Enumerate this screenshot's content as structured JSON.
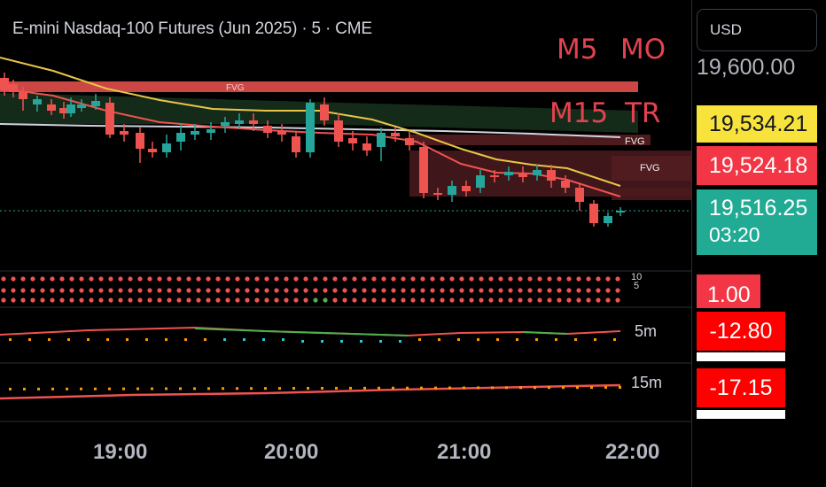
{
  "header": {
    "symbol_title": "E-mini Nasdaq-100 Futures (Jun 2025) · 5 · CME",
    "tag_m5": "M5",
    "tag_mo": "MO",
    "tag_m15": "M15",
    "tag_tr": "TR"
  },
  "price_axis": {
    "currency": "USD",
    "level_top": "19,600.00",
    "level_yellow": "19,534.21",
    "level_red": "19,524.18",
    "last_price": "19,516.25",
    "countdown": "03:20"
  },
  "zones": {
    "fvg_1": "FVG",
    "fvg_2": "FVG",
    "fvg_3": "FVG"
  },
  "dot_pane": {
    "value": "1.00",
    "label_a": "10",
    "label_b": "5"
  },
  "osc_5m": {
    "label": "5m",
    "value": "-12.80"
  },
  "osc_15m": {
    "label": "15m",
    "value": "-17.15"
  },
  "time_axis": [
    "19:00",
    "20:00",
    "21:00",
    "22:00"
  ],
  "colors": {
    "bull": "#26a69a",
    "bear": "#ef5350",
    "yellow_label": "#f7e33b",
    "red_label": "#f23645",
    "teal_label": "#22ab94",
    "tag_red": "#e2434f"
  }
}
